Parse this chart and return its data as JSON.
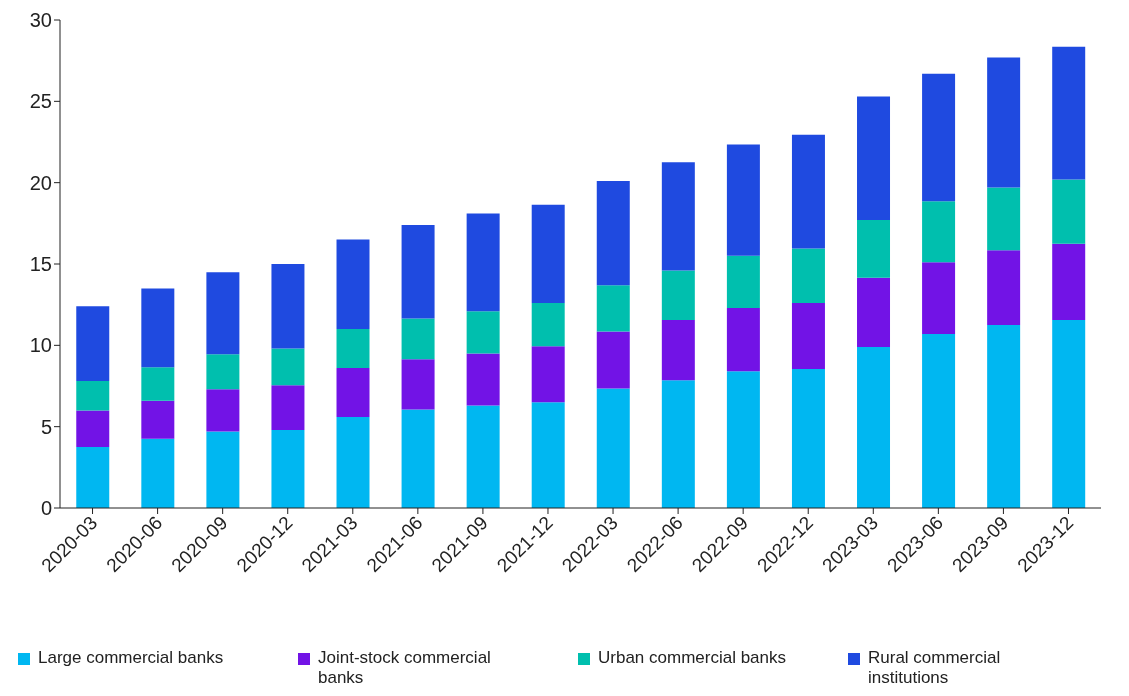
{
  "chart_data": {
    "type": "bar",
    "stacked": true,
    "categories": [
      "2020-03",
      "2020-06",
      "2020-09",
      "2020-12",
      "2021-03",
      "2021-06",
      "2021-09",
      "2021-12",
      "2022-03",
      "2022-06",
      "2022-09",
      "2022-12",
      "2023-03",
      "2023-06",
      "2023-09",
      "2023-12"
    ],
    "series": [
      {
        "name": "Large commercial banks",
        "color": "#00b7f1",
        "values": [
          3.75,
          4.25,
          4.7,
          4.8,
          5.6,
          6.05,
          6.3,
          6.5,
          7.35,
          7.85,
          8.4,
          8.55,
          9.9,
          10.7,
          11.25,
          11.55
        ]
      },
      {
        "name": "Joint-stock commercial banks",
        "color": "#7213e6",
        "values": [
          2.25,
          2.35,
          2.6,
          2.75,
          3.0,
          3.1,
          3.2,
          3.45,
          3.5,
          3.7,
          3.9,
          4.05,
          4.25,
          4.4,
          4.6,
          4.7
        ]
      },
      {
        "name": "Urban commercial banks",
        "color": "#00bfae",
        "values": [
          1.8,
          2.05,
          2.15,
          2.25,
          2.4,
          2.5,
          2.6,
          2.65,
          2.85,
          3.05,
          3.2,
          3.35,
          3.55,
          3.75,
          3.85,
          3.95
        ]
      },
      {
        "name": "Rural commercial institutions",
        "color": "#1f4ae0",
        "values": [
          4.6,
          4.85,
          5.05,
          5.2,
          5.5,
          5.75,
          6.0,
          6.05,
          6.4,
          6.65,
          6.85,
          7.0,
          7.6,
          7.85,
          8.0,
          8.15
        ]
      }
    ],
    "ylim": [
      0,
      30
    ],
    "yticks": [
      0,
      5,
      10,
      15,
      20,
      25,
      30
    ],
    "grid": false,
    "legend": "bottom"
  }
}
